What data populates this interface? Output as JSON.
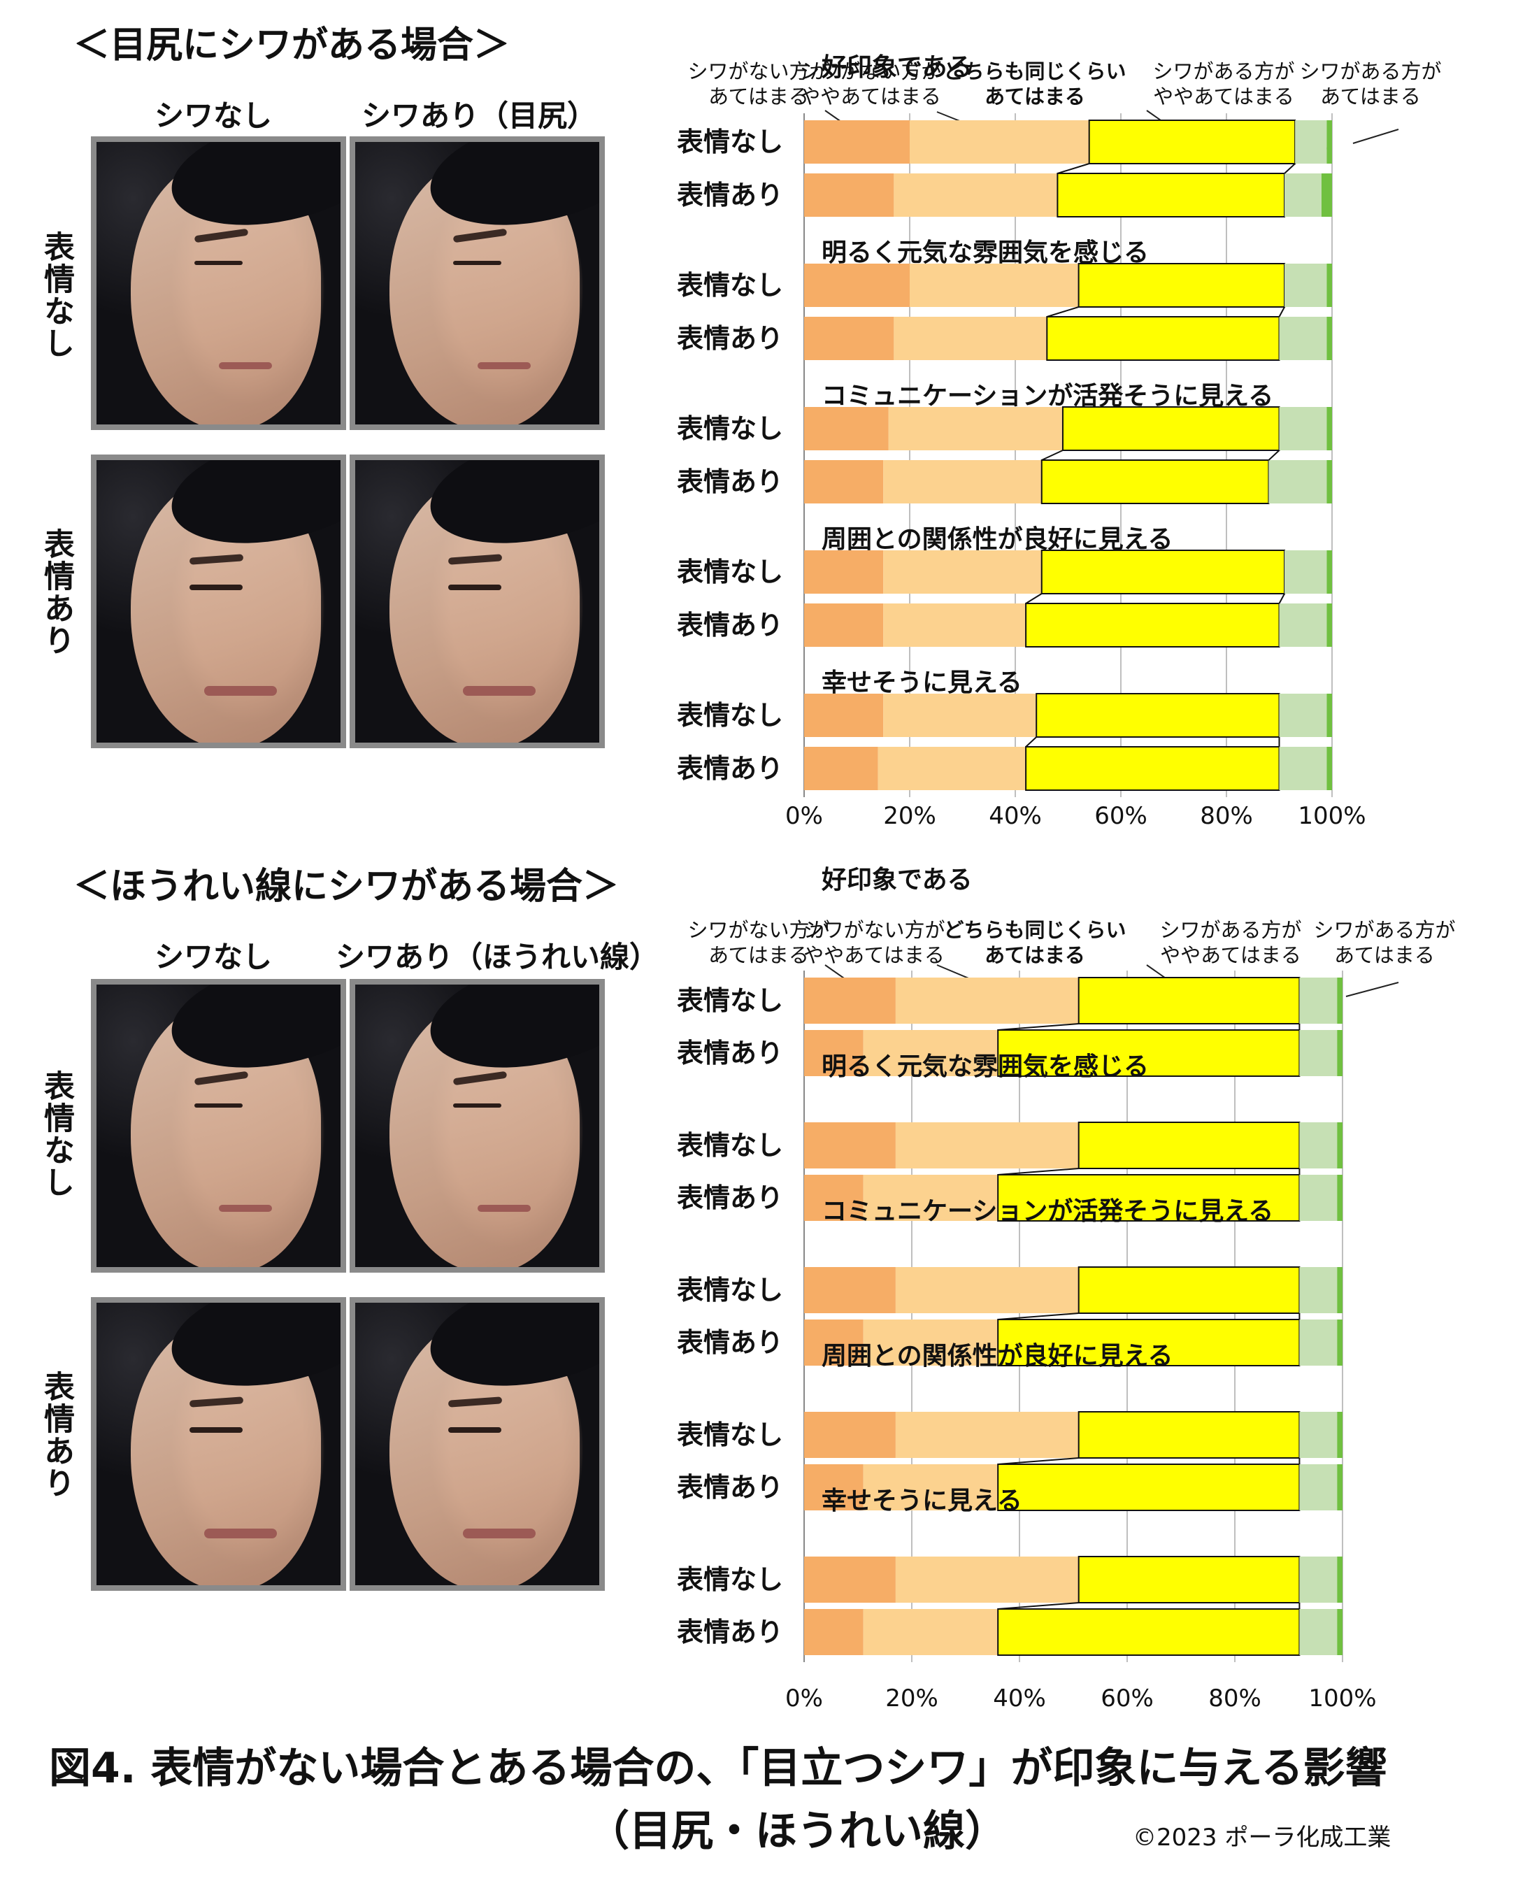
{
  "figure": {
    "caption_line1": "図4. 表情がない場合とある場合の、「目立つシワ」が印象に与える影響",
    "caption_line2": "（目尻・ほうれい線）",
    "copyright": "©2023  ポーラ化成工業"
  },
  "panels": [
    {
      "title": "＜目尻にシワがある場合＞",
      "col_headers": [
        "シワなし",
        "シワあり（目尻）"
      ],
      "row_headers": [
        "表情なし",
        "表情あり"
      ]
    },
    {
      "title": "＜ほうれい線にシワがある場合＞",
      "col_headers": [
        "シワなし",
        "シワあり（ほうれい線）"
      ],
      "row_headers": [
        "表情なし",
        "表情あり"
      ]
    }
  ],
  "colors": {
    "cat1": "#f6ad66",
    "cat2": "#fcd28f",
    "cat3": "#ffff00",
    "cat4": "#c6e0b4",
    "cat5": "#70c040",
    "grid": "#bfbfbf"
  },
  "chart_data": [
    {
      "type": "bar",
      "stacked": true,
      "orientation": "horizontal",
      "legend_labels": [
        "シワがない方が\nあてはまる",
        "シワがない方が\nややあてはまる",
        "どちらも同じくらい\nあてはまる",
        "シワがある方が\nややあてはまる",
        "シワがある方が\nあてはまる"
      ],
      "x_ticks": [
        "0%",
        "20%",
        "40%",
        "60%",
        "80%",
        "100%"
      ],
      "xlim": [
        0,
        100
      ],
      "groups": [
        {
          "title": "好印象である",
          "rows": [
            {
              "label": "表情なし",
              "values": [
                20,
                34,
                39,
                6,
                1
              ]
            },
            {
              "label": "表情あり",
              "values": [
                17,
                31,
                43,
                7,
                2
              ]
            }
          ]
        },
        {
          "title": "明るく元気な雰囲気を感じる",
          "rows": [
            {
              "label": "表情なし",
              "values": [
                20,
                32,
                39,
                8,
                1
              ]
            },
            {
              "label": "表情あり",
              "values": [
                17,
                29,
                44,
                9,
                1
              ]
            }
          ]
        },
        {
          "title": "コミュニケーションが活発そうに見える",
          "rows": [
            {
              "label": "表情なし",
              "values": [
                16,
                33,
                41,
                9,
                1
              ]
            },
            {
              "label": "表情あり",
              "values": [
                15,
                30,
                43,
                11,
                1
              ]
            }
          ]
        },
        {
          "title": "周囲との関係性が良好に見える",
          "rows": [
            {
              "label": "表情なし",
              "values": [
                15,
                30,
                46,
                8,
                1
              ]
            },
            {
              "label": "表情あり",
              "values": [
                15,
                27,
                48,
                9,
                1
              ]
            }
          ]
        },
        {
          "title": "幸せそうに見える",
          "rows": [
            {
              "label": "表情なし",
              "values": [
                15,
                29,
                46,
                9,
                1
              ]
            },
            {
              "label": "表情あり",
              "values": [
                14,
                28,
                48,
                9,
                1
              ]
            }
          ]
        }
      ]
    },
    {
      "type": "bar",
      "stacked": true,
      "orientation": "horizontal",
      "legend_labels": [
        "シワがない方が\nあてはまる",
        "シワがない方が\nややあてはまる",
        "どちらも同じくらい\nあてはまる",
        "シワがある方が\nややあてはまる",
        "シワがある方が\nあてはまる"
      ],
      "x_ticks": [
        "0%",
        "20%",
        "40%",
        "60%",
        "80%",
        "100%"
      ],
      "xlim": [
        0,
        100
      ],
      "groups": [
        {
          "title": "好印象である",
          "rows": [
            {
              "label": "表情なし",
              "values": [
                17,
                34,
                41,
                7,
                1
              ]
            },
            {
              "label": "表情あり",
              "values": [
                11,
                25,
                56,
                7,
                1
              ]
            }
          ]
        },
        {
          "title": "明るく元気な雰囲気を感じる",
          "rows": [
            {
              "label": "表情なし",
              "values": [
                17,
                34,
                41,
                7,
                1
              ]
            },
            {
              "label": "表情あり",
              "values": [
                11,
                25,
                56,
                7,
                1
              ]
            }
          ]
        },
        {
          "title": "コミュニケーションが活発そうに見える",
          "rows": [
            {
              "label": "表情なし",
              "values": [
                17,
                34,
                41,
                7,
                1
              ]
            },
            {
              "label": "表情あり",
              "values": [
                11,
                25,
                56,
                7,
                1
              ]
            }
          ]
        },
        {
          "title": "周囲との関係性が良好に見える",
          "rows": [
            {
              "label": "表情なし",
              "values": [
                17,
                34,
                41,
                7,
                1
              ]
            },
            {
              "label": "表情あり",
              "values": [
                11,
                25,
                56,
                7,
                1
              ]
            }
          ]
        },
        {
          "title": "幸せそうに見える",
          "rows": [
            {
              "label": "表情なし",
              "values": [
                17,
                34,
                41,
                7,
                1
              ]
            },
            {
              "label": "表情あり",
              "values": [
                11,
                25,
                56,
                7,
                1
              ]
            }
          ]
        }
      ]
    }
  ]
}
